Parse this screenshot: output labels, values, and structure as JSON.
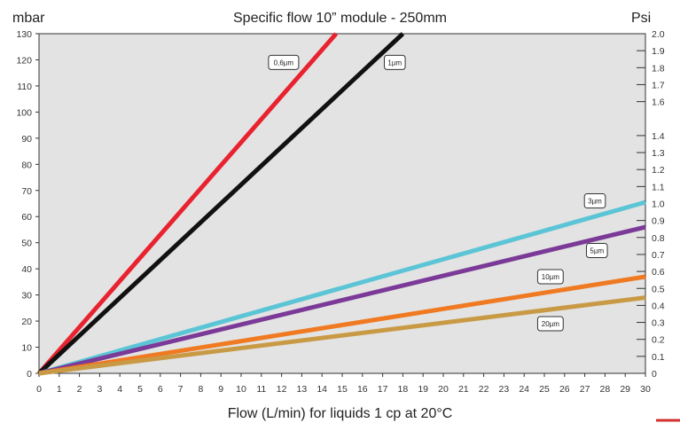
{
  "chart_data": {
    "type": "line",
    "title": "Specific flow 10” module - 250mm",
    "xlabel": "Flow (L/min) for liquids 1 cp at 20°C",
    "ylabel_left": "mbar",
    "ylabel_right": "Psi",
    "xlim": [
      0,
      30
    ],
    "ylim": [
      0,
      130
    ],
    "y2lim": [
      0,
      2.0
    ],
    "x_ticks": [
      0,
      1,
      2,
      3,
      4,
      5,
      6,
      7,
      8,
      9,
      10,
      11,
      12,
      13,
      14,
      15,
      16,
      17,
      18,
      19,
      20,
      21,
      22,
      23,
      24,
      25,
      26,
      27,
      28,
      29,
      30
    ],
    "y_ticks": [
      0,
      10,
      20,
      30,
      40,
      50,
      60,
      70,
      80,
      90,
      100,
      110,
      120,
      130
    ],
    "y2_ticks": [
      "0",
      "0.1",
      "0.2",
      "0.3",
      "0.4",
      "0.5",
      "0.6",
      "0.7",
      "0.8",
      "0.9",
      "1.0",
      "1.1",
      "1.2",
      "1.3",
      "1.4",
      "1.6",
      "1.7",
      "1.8",
      "1.9",
      "2.0"
    ],
    "y2_tick_values": [
      0,
      0.1,
      0.2,
      0.3,
      0.4,
      0.5,
      0.6,
      0.7,
      0.8,
      0.9,
      1.0,
      1.1,
      1.2,
      1.3,
      1.4,
      1.6,
      1.7,
      1.8,
      1.9,
      2.0
    ],
    "grid": false,
    "series": [
      {
        "name": "0,6µm",
        "color": "#e8232f",
        "x": [
          0,
          14.7
        ],
        "y": [
          0,
          130
        ],
        "label_at": [
          12.1,
          119
        ]
      },
      {
        "name": "1µm",
        "color": "#111111",
        "x": [
          0,
          18
        ],
        "y": [
          0,
          130
        ],
        "label_at": [
          17.6,
          119
        ]
      },
      {
        "name": "3µm",
        "color": "#5bc5d6",
        "x": [
          0,
          30
        ],
        "y": [
          0,
          65.5
        ],
        "label_at": [
          27.5,
          66
        ]
      },
      {
        "name": "5µm",
        "color": "#7b3a98",
        "x": [
          0,
          30
        ],
        "y": [
          0,
          56
        ],
        "label_at": [
          27.6,
          47
        ]
      },
      {
        "name": "10µm",
        "color": "#ef7a22",
        "x": [
          0,
          30
        ],
        "y": [
          0,
          37
        ],
        "label_at": [
          25.3,
          37
        ]
      },
      {
        "name": "20µm",
        "color": "#c99a45",
        "x": [
          0,
          30
        ],
        "y": [
          0,
          29
        ],
        "label_at": [
          25.3,
          19
        ]
      }
    ]
  }
}
